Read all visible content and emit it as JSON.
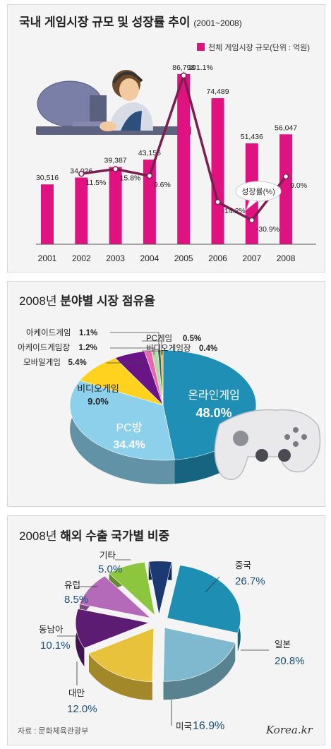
{
  "charts": {
    "market": {
      "title_bold": "국내 게임시장 규모 및 성장률 추이",
      "title_range": "(2001~2008)",
      "legend": "전체 게임시장 규모(단위 : 억원)",
      "growth_callout": "성장률(%)"
    },
    "share2008": {
      "title_year": "2008년",
      "title_bold": "분야별 시장 점유율"
    },
    "export2008": {
      "title_year": "2008년",
      "title_bold": "해외 수출 국가별 비중"
    }
  },
  "footer": {
    "source": "자료 : 문화체육관광부",
    "brand": "Korea.kr"
  },
  "chart_data": [
    {
      "type": "bar",
      "title": "국내 게임시장 규모 및 성장률 추이 (2001~2008)",
      "categories": [
        "2001",
        "2002",
        "2003",
        "2004",
        "2005",
        "2006",
        "2007",
        "2008"
      ],
      "series": [
        {
          "name": "전체 게임시장 규모(단위 : 억원)",
          "type": "bar",
          "values": [
            30516,
            34026,
            39387,
            43156,
            86798,
            74489,
            51436,
            56047
          ],
          "labels": [
            "30,516",
            "34,026",
            "39,387",
            "43,156",
            "86,798",
            "74,489",
            "51,436",
            "56,047"
          ]
        },
        {
          "name": "성장률(%)",
          "type": "line",
          "values": [
            null,
            11.5,
            15.8,
            9.6,
            101.1,
            -14.2,
            -30.9,
            9.0
          ],
          "labels": [
            "",
            "11.5%",
            "15.8%",
            "9.6%",
            "101.1%",
            "-14.2%",
            "-30.9%",
            "9.0%"
          ]
        }
      ],
      "colors": {
        "bar": "#e0127f",
        "line": "#7a1f4e"
      }
    },
    {
      "type": "pie",
      "title": "2008년 분야별 시장 점유율",
      "slices": [
        {
          "label": "온라인게임",
          "value": 48.0,
          "value_label": "48.0%",
          "color": "#1f8fb5"
        },
        {
          "label": "PC방",
          "value": 34.4,
          "value_label": "34.4%",
          "color": "#8cd0ec"
        },
        {
          "label": "비디오게임",
          "value": 9.0,
          "value_label": "9.0%",
          "color": "#ffd21f"
        },
        {
          "label": "모바일게임",
          "value": 5.4,
          "value_label": "5.4%",
          "color": "#6a1585"
        },
        {
          "label": "아케이드게임장",
          "value": 1.2,
          "value_label": "1.2%",
          "color": "#ea67ad"
        },
        {
          "label": "아케이드게임",
          "value": 1.1,
          "value_label": "1.1%",
          "color": "#b6d8a8"
        },
        {
          "label": "PC게임",
          "value": 0.5,
          "value_label": "0.5%",
          "color": "#2e6b57"
        },
        {
          "label": "비디오게임장",
          "value": 0.4,
          "value_label": "0.4%",
          "color": "#e9aa3a"
        }
      ]
    },
    {
      "type": "pie",
      "title": "2008년 해외 수출 국가별 비중",
      "slices": [
        {
          "label": "중국",
          "value": 26.7,
          "value_label": "26.7%",
          "color": "#1e8fb2"
        },
        {
          "label": "일본",
          "value": 20.8,
          "value_label": "20.8%",
          "color": "#7fb9cf"
        },
        {
          "label": "미국",
          "value": 16.9,
          "value_label": "16.9%",
          "color": "#e7c23a"
        },
        {
          "label": "대만",
          "value": 12.0,
          "value_label": "12.0%",
          "color": "#5c1c72"
        },
        {
          "label": "동남아",
          "value": 10.1,
          "value_label": "10.1%",
          "color": "#b46ab8"
        },
        {
          "label": "유럽",
          "value": 8.5,
          "value_label": "8.5%",
          "color": "#8cc63f"
        },
        {
          "label": "기타",
          "value": 5.0,
          "value_label": "5.0%",
          "color": "#1b3a73"
        }
      ]
    }
  ]
}
